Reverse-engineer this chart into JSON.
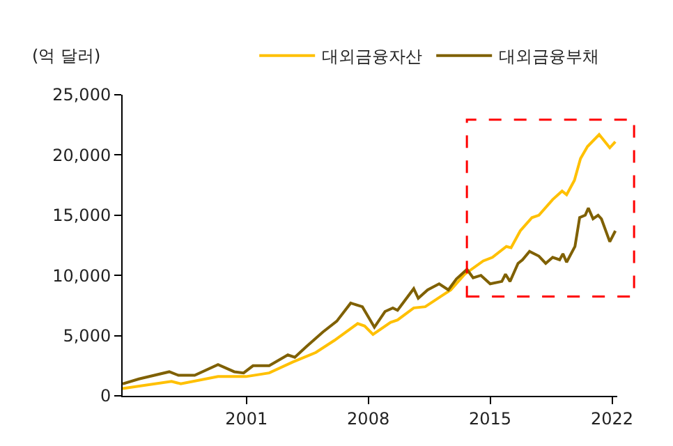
{
  "chart_data": {
    "type": "line",
    "ylabel": "(억 달러)",
    "series": [
      {
        "name": "대외금융자산",
        "color": "#ffc000",
        "x": [
          1993.89,
          1996.7,
          1997.23,
          1999.37,
          2000.98,
          2002.31,
          2003.65,
          2004.99,
          2006.05,
          2007.39,
          2007.79,
          2008.27,
          2009.28,
          2009.68,
          2010.61,
          2011.27,
          2012.21,
          2012.74,
          2013.54,
          2014.6,
          2015.13,
          2015.93,
          2016.2,
          2016.73,
          2017.4,
          2017.8,
          2018.59,
          2019.13,
          2019.39,
          2019.84,
          2020.19,
          2020.59,
          2021.26,
          2021.87,
          2022.19
        ],
        "values": [
          600,
          1200,
          1000,
          1600,
          1600,
          1900,
          2800,
          3600,
          4600,
          6000,
          5800,
          5100,
          6100,
          6300,
          7300,
          7400,
          8300,
          8800,
          10100,
          11200,
          11500,
          12400,
          12300,
          13700,
          14800,
          15000,
          16300,
          17000,
          16700,
          17900,
          19700,
          20700,
          21700,
          20600,
          21100
        ]
      },
      {
        "name": "대외금융부채",
        "color": "#7f6000",
        "x": [
          1993.89,
          1994.83,
          1996.57,
          1997.1,
          1998.03,
          1999.37,
          2000.3,
          2000.84,
          2001.38,
          2002.31,
          2003.38,
          2003.78,
          2004.45,
          2005.39,
          2006.19,
          2006.99,
          2007.66,
          2008.35,
          2008.96,
          2009.41,
          2009.68,
          2010.61,
          2010.87,
          2011.41,
          2012.07,
          2012.6,
          2013.06,
          2013.67,
          2014.02,
          2014.47,
          2015.0,
          2015.67,
          2015.88,
          2016.14,
          2016.6,
          2016.86,
          2017.26,
          2017.8,
          2018.19,
          2018.59,
          2018.99,
          2019.18,
          2019.39,
          2019.87,
          2020.14,
          2020.46,
          2020.64,
          2020.91,
          2021.2,
          2021.39,
          2021.87,
          2022.19
        ],
        "values": [
          1000,
          1400,
          2000,
          1700,
          1700,
          2600,
          2000,
          1900,
          2500,
          2500,
          3400,
          3200,
          4100,
          5300,
          6200,
          7700,
          7400,
          5700,
          7000,
          7300,
          7100,
          8900,
          8100,
          8800,
          9300,
          8800,
          9700,
          10500,
          9800,
          10000,
          9300,
          9500,
          10100,
          9500,
          11000,
          11300,
          12000,
          11600,
          11000,
          11500,
          11300,
          11800,
          11100,
          12400,
          14800,
          15000,
          15600,
          14700,
          15000,
          14700,
          12800,
          13700
        ]
      }
    ],
    "xlim": [
      1993.89,
      2022.3
    ],
    "xticks": [
      2001,
      2008,
      2015,
      2022
    ],
    "ylim": [
      0,
      25000
    ],
    "yticks": [
      0,
      {
        "value": 5000,
        "label": "5,000"
      },
      {
        "value": 10000,
        "label": "10,000"
      },
      {
        "value": 15000,
        "label": "15,000"
      },
      {
        "value": 20000,
        "label": "20,000"
      },
      {
        "value": 25000,
        "label": "25,000"
      }
    ],
    "legend": "top",
    "marker": "none",
    "line_style": "solid"
  }
}
